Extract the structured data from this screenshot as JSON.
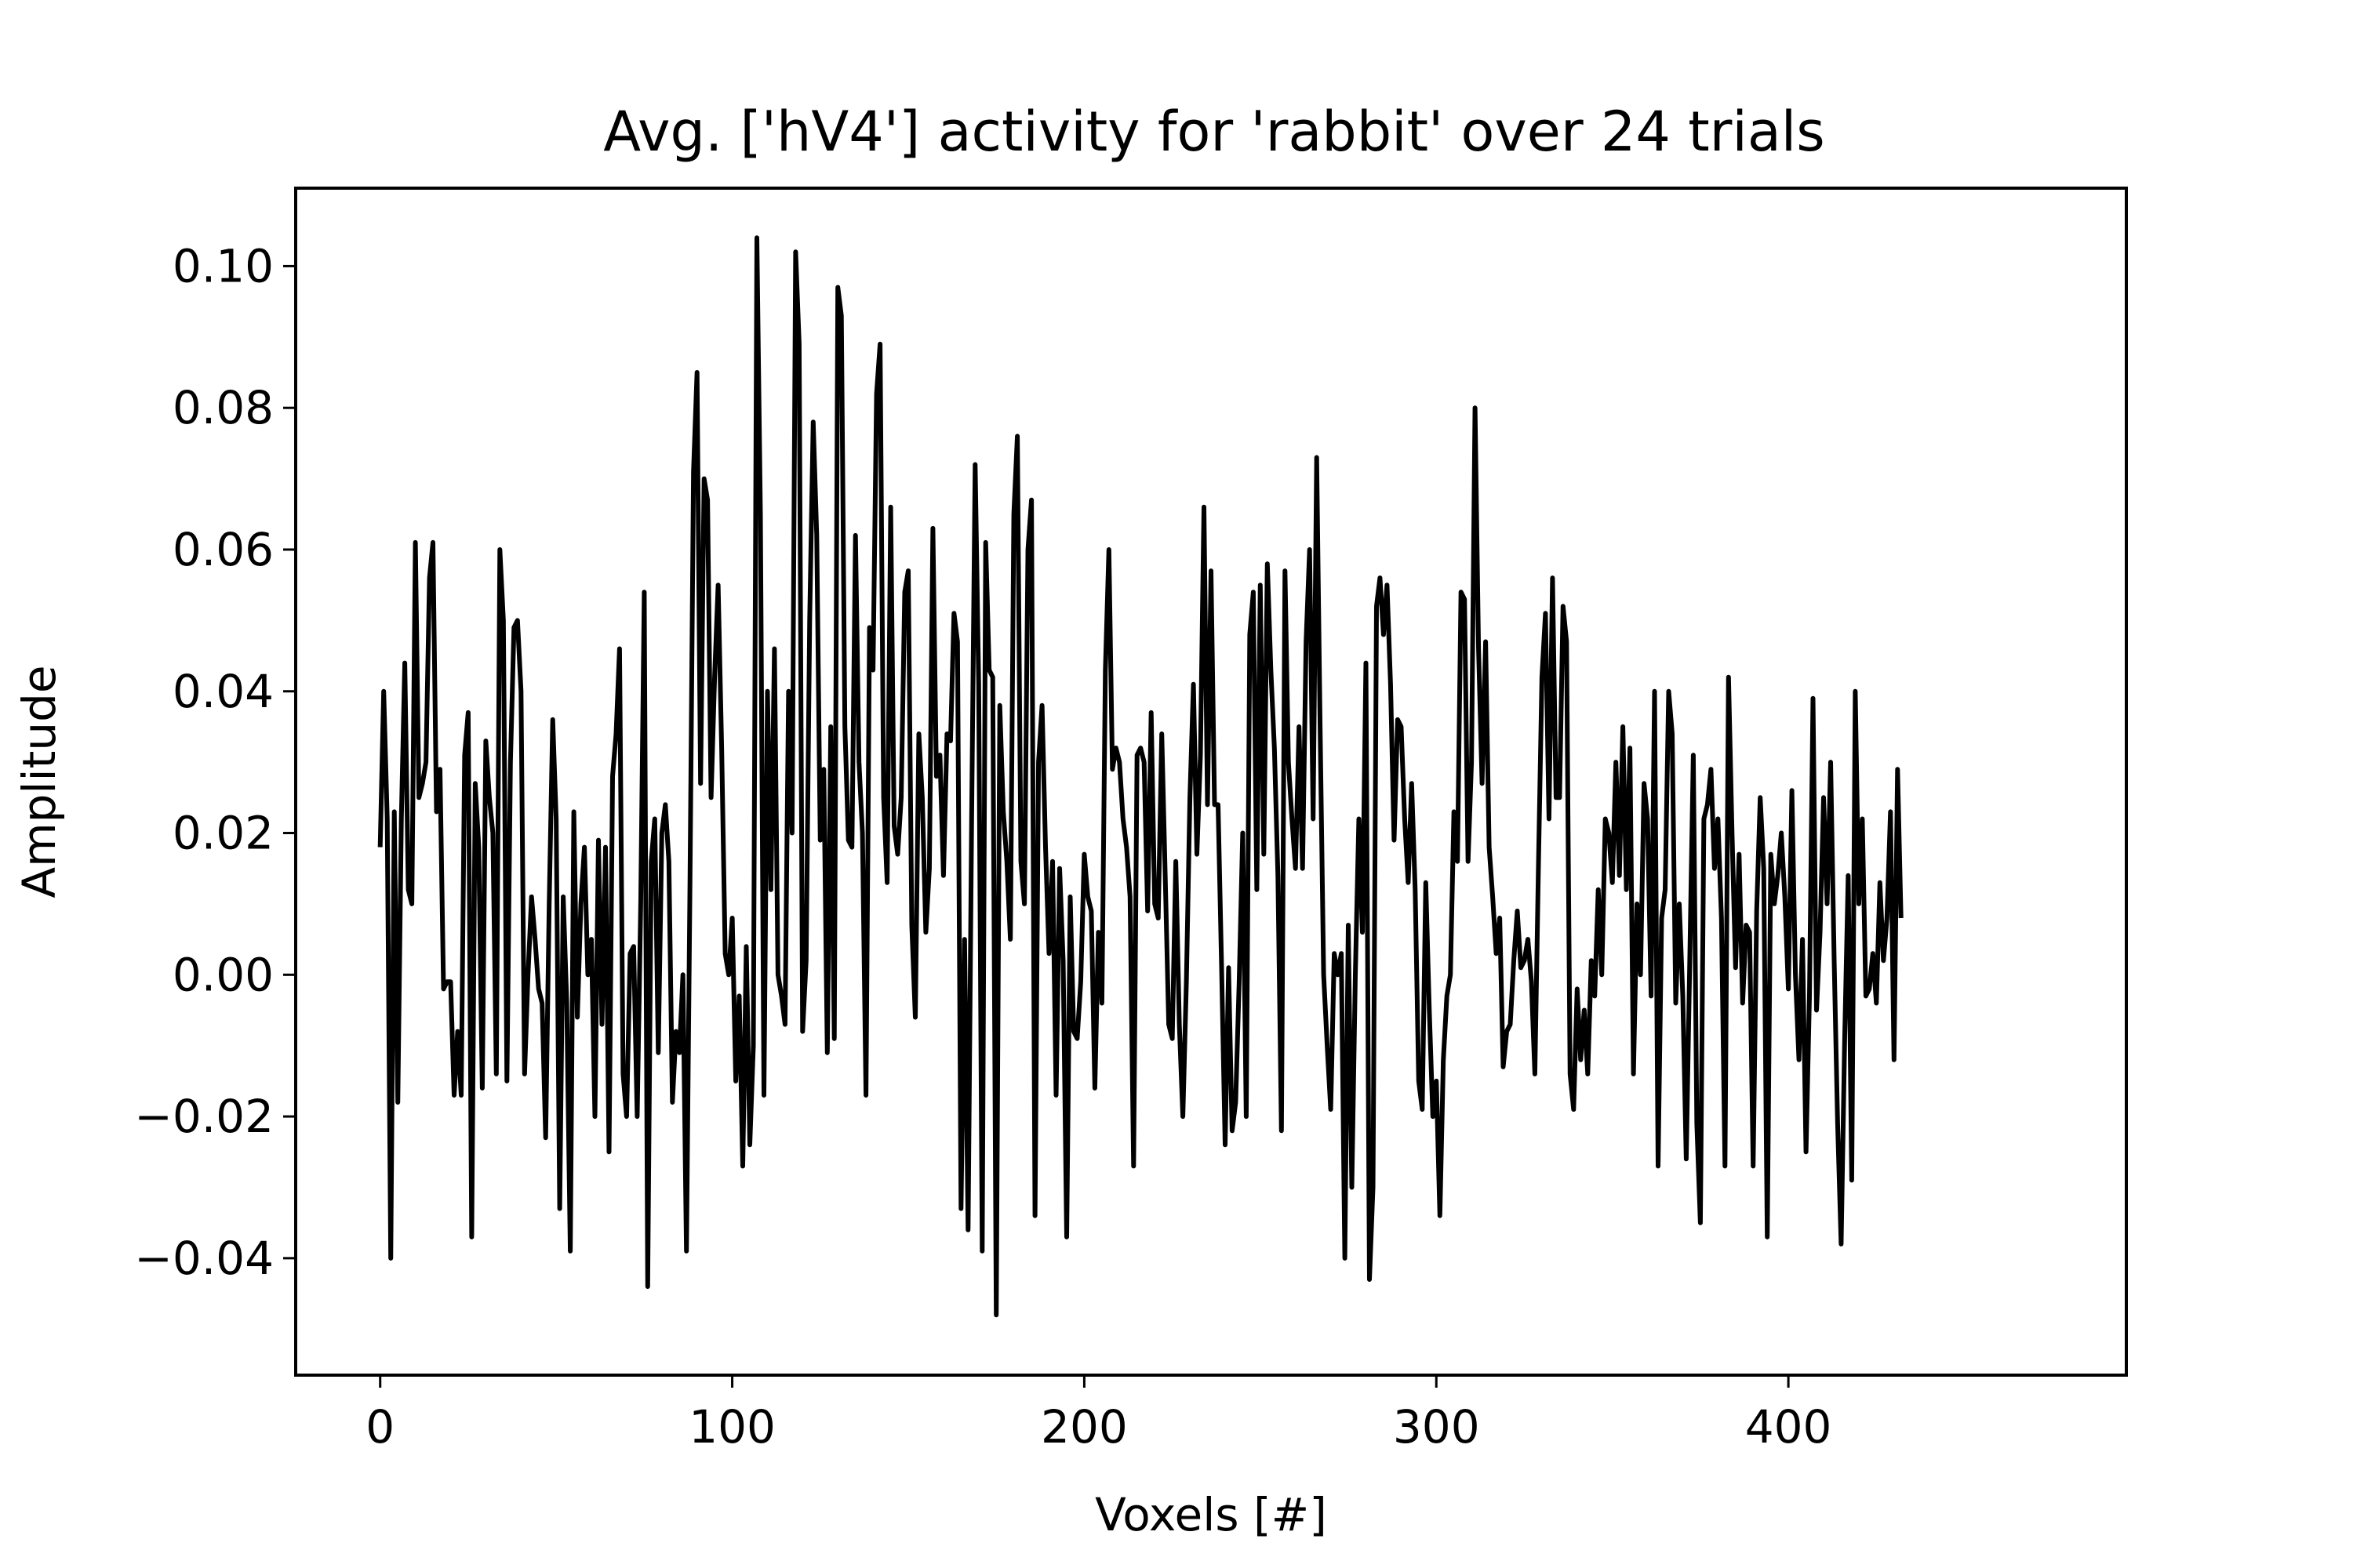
{
  "chart_data": {
    "type": "line",
    "title": "Avg. ['hV4'] activity for 'rabbit' over 24 trials",
    "xlabel": "Voxels [#]",
    "ylabel": "Amplitude",
    "xlim": [
      -24,
      496
    ],
    "ylim": [
      -0.0565,
      0.111
    ],
    "xticks": [
      0,
      100,
      200,
      300,
      400
    ],
    "xtick_labels": [
      "0",
      "100",
      "200",
      "300",
      "400"
    ],
    "yticks": [
      -0.04,
      -0.02,
      0.0,
      0.02,
      0.04,
      0.06,
      0.08,
      0.1
    ],
    "ytick_labels": [
      "−0.04",
      "−0.02",
      "0.00",
      "0.02",
      "0.04",
      "0.06",
      "0.08",
      "0.10"
    ],
    "grid": false,
    "legend": "none",
    "line_color": "#000000",
    "series": [
      {
        "values": [
          0.018,
          0.04,
          0.022,
          -0.04,
          0.023,
          -0.018,
          0.022,
          0.044,
          0.012,
          0.01,
          0.061,
          0.025,
          0.027,
          0.03,
          0.056,
          0.061,
          0.023,
          0.029,
          -0.002,
          -0.001,
          -0.001,
          -0.017,
          -0.008,
          -0.017,
          0.031,
          0.037,
          -0.037,
          0.027,
          0.018,
          -0.016,
          0.033,
          0.025,
          0.02,
          -0.014,
          0.06,
          0.05,
          -0.015,
          0.03,
          0.049,
          0.05,
          0.04,
          -0.014,
          0.0,
          0.011,
          0.005,
          -0.002,
          -0.004,
          -0.023,
          0.01,
          0.036,
          0.022,
          -0.033,
          0.011,
          -0.004,
          -0.039,
          0.023,
          -0.006,
          0.01,
          0.018,
          0.0,
          0.005,
          -0.02,
          0.019,
          -0.007,
          0.018,
          -0.025,
          0.028,
          0.034,
          0.046,
          -0.014,
          -0.02,
          0.003,
          0.004,
          -0.02,
          0.01,
          0.054,
          -0.044,
          0.016,
          0.022,
          -0.011,
          0.02,
          0.024,
          0.016,
          -0.018,
          -0.008,
          -0.011,
          0.0,
          -0.039,
          0.013,
          0.071,
          0.085,
          0.027,
          0.07,
          0.067,
          0.025,
          0.042,
          0.055,
          0.032,
          0.003,
          0.0,
          0.008,
          -0.015,
          -0.003,
          -0.027,
          0.004,
          -0.024,
          -0.01,
          0.104,
          0.065,
          -0.017,
          0.04,
          0.012,
          0.046,
          0.0,
          -0.003,
          -0.007,
          0.04,
          0.02,
          0.102,
          0.089,
          -0.008,
          0.002,
          0.05,
          0.078,
          0.062,
          0.019,
          0.029,
          -0.011,
          0.035,
          -0.009,
          0.097,
          0.093,
          0.035,
          0.019,
          0.018,
          0.062,
          0.03,
          0.02,
          -0.017,
          0.049,
          0.043,
          0.082,
          0.089,
          0.025,
          0.013,
          0.066,
          0.021,
          0.017,
          0.025,
          0.054,
          0.057,
          0.007,
          -0.006,
          0.034,
          0.025,
          0.006,
          0.015,
          0.063,
          0.028,
          0.031,
          0.014,
          0.034,
          0.033,
          0.051,
          0.047,
          -0.033,
          0.005,
          -0.036,
          0.022,
          0.072,
          0.041,
          -0.039,
          0.061,
          0.043,
          0.042,
          -0.048,
          0.038,
          0.023,
          0.016,
          0.005,
          0.065,
          0.076,
          0.016,
          0.01,
          0.06,
          0.067,
          -0.034,
          0.03,
          0.038,
          0.018,
          0.003,
          0.016,
          -0.017,
          0.015,
          0.002,
          -0.037,
          0.011,
          -0.008,
          -0.009,
          -0.001,
          0.017,
          0.011,
          0.009,
          -0.016,
          0.006,
          -0.004,
          0.043,
          0.06,
          0.029,
          0.032,
          0.03,
          0.022,
          0.018,
          0.011,
          -0.027,
          0.031,
          0.032,
          0.03,
          0.009,
          0.037,
          0.01,
          0.008,
          0.034,
          0.014,
          -0.007,
          -0.009,
          0.016,
          -0.007,
          -0.02,
          -0.001,
          0.025,
          0.041,
          0.017,
          0.031,
          0.066,
          0.024,
          0.057,
          0.024,
          0.024,
          0.001,
          -0.024,
          0.001,
          -0.022,
          -0.018,
          -0.001,
          0.02,
          -0.02,
          0.048,
          0.054,
          0.012,
          0.055,
          0.017,
          0.058,
          0.043,
          0.032,
          0.014,
          -0.022,
          0.057,
          0.03,
          0.022,
          0.015,
          0.035,
          0.015,
          0.047,
          0.06,
          0.022,
          0.073,
          0.035,
          0.0,
          -0.01,
          -0.019,
          0.003,
          0.0,
          0.003,
          -0.04,
          0.007,
          -0.03,
          0.0,
          0.022,
          0.006,
          0.044,
          -0.043,
          -0.03,
          0.052,
          0.056,
          0.048,
          0.055,
          0.041,
          0.019,
          0.036,
          0.035,
          0.022,
          0.013,
          0.027,
          0.012,
          -0.015,
          -0.019,
          0.013,
          -0.005,
          -0.02,
          -0.015,
          -0.034,
          -0.012,
          -0.003,
          0.0,
          0.023,
          0.016,
          0.054,
          0.053,
          0.016,
          0.03,
          0.08,
          0.046,
          0.027,
          0.047,
          0.018,
          0.011,
          0.003,
          0.008,
          -0.013,
          -0.008,
          -0.007,
          0.002,
          0.009,
          0.001,
          0.002,
          0.005,
          -0.001,
          -0.014,
          0.015,
          0.042,
          0.051,
          0.022,
          0.056,
          0.025,
          0.025,
          0.052,
          0.047,
          -0.014,
          -0.019,
          -0.002,
          -0.012,
          -0.005,
          -0.014,
          0.002,
          -0.003,
          0.012,
          0.0,
          0.022,
          0.02,
          0.013,
          0.03,
          0.014,
          0.035,
          0.012,
          0.032,
          -0.014,
          0.01,
          0.0,
          0.027,
          0.022,
          -0.003,
          0.04,
          -0.027,
          0.008,
          0.012,
          0.04,
          0.034,
          -0.004,
          0.01,
          -0.003,
          -0.026,
          0.002,
          0.031,
          -0.021,
          -0.035,
          0.022,
          0.024,
          0.029,
          0.015,
          0.022,
          0.008,
          -0.027,
          0.042,
          0.02,
          0.001,
          0.017,
          -0.004,
          0.007,
          0.006,
          -0.027,
          0.009,
          0.025,
          0.015,
          -0.037,
          0.017,
          0.01,
          0.014,
          0.02,
          0.011,
          -0.002,
          0.026,
          0.0,
          -0.012,
          0.005,
          -0.025,
          -0.003,
          0.039,
          -0.005,
          0.006,
          0.025,
          0.01,
          0.03,
          0.002,
          -0.021,
          -0.038,
          -0.009,
          0.014,
          -0.029,
          0.04,
          0.01,
          0.022,
          -0.003,
          -0.002,
          0.003,
          -0.004,
          0.013,
          0.002,
          0.008,
          0.023,
          -0.012,
          0.029,
          0.008
        ]
      }
    ]
  }
}
